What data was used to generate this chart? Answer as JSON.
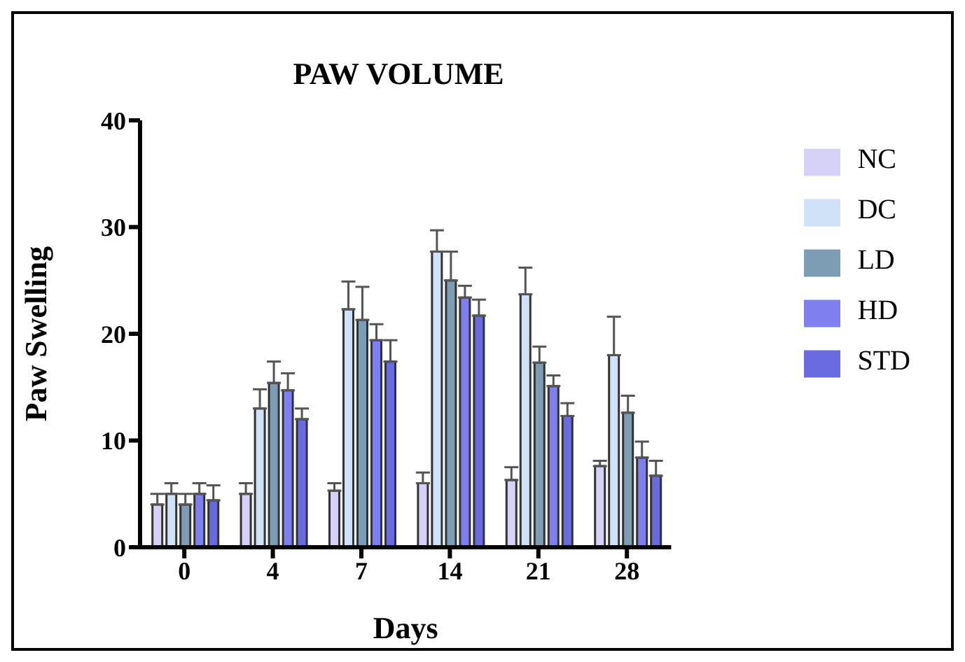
{
  "chart_data": {
    "type": "bar",
    "title": "PAW VOLUME",
    "xlabel": "Days",
    "ylabel": "Paw Swelling",
    "categories": [
      "0",
      "4",
      "7",
      "14",
      "21",
      "28"
    ],
    "series": [
      {
        "name": "NC",
        "color": "#d6d2f7",
        "values": [
          4.0,
          5.0,
          5.3,
          6.0,
          6.3,
          7.6
        ],
        "errors": [
          [
            4.0,
            5.0
          ],
          [
            5.0,
            6.0
          ],
          [
            5.3,
            6.0
          ],
          [
            6.0,
            7.0
          ],
          [
            6.3,
            7.5
          ],
          [
            7.6,
            8.1
          ]
        ]
      },
      {
        "name": "DC",
        "color": "#cfe2f7",
        "values": [
          5.0,
          13.0,
          22.3,
          27.7,
          23.7,
          18.0
        ],
        "errors": [
          [
            5.0,
            6.0
          ],
          [
            13.0,
            14.8
          ],
          [
            22.3,
            24.9
          ],
          [
            27.7,
            29.7
          ],
          [
            23.7,
            26.2
          ],
          [
            18.0,
            21.6
          ]
        ]
      },
      {
        "name": "LD",
        "color": "#7d9db5",
        "values": [
          4.0,
          15.4,
          21.3,
          25.0,
          17.3,
          12.6
        ],
        "errors": [
          [
            4.0,
            5.0
          ],
          [
            15.4,
            17.4
          ],
          [
            21.3,
            24.4
          ],
          [
            25.0,
            27.7
          ],
          [
            17.3,
            18.8
          ],
          [
            12.6,
            14.2
          ]
        ]
      },
      {
        "name": "HD",
        "color": "#7f7ff0",
        "values": [
          5.0,
          14.7,
          19.4,
          23.4,
          15.1,
          8.4
        ],
        "errors": [
          [
            5.0,
            6.0
          ],
          [
            14.7,
            16.3
          ],
          [
            19.4,
            20.9
          ],
          [
            23.4,
            24.5
          ],
          [
            15.1,
            16.1
          ],
          [
            8.4,
            9.9
          ]
        ]
      },
      {
        "name": "STD",
        "color": "#6b6be0",
        "values": [
          4.4,
          12.0,
          17.4,
          21.7,
          12.3,
          6.7
        ],
        "errors": [
          [
            4.4,
            5.8
          ],
          [
            12.0,
            13.0
          ],
          [
            17.4,
            19.4
          ],
          [
            21.7,
            23.2
          ],
          [
            12.3,
            13.5
          ],
          [
            6.7,
            8.1
          ]
        ]
      }
    ],
    "ylim": [
      0,
      40
    ],
    "yticks": [
      0,
      10,
      20,
      30,
      40
    ],
    "grid": false,
    "legend": "right"
  }
}
